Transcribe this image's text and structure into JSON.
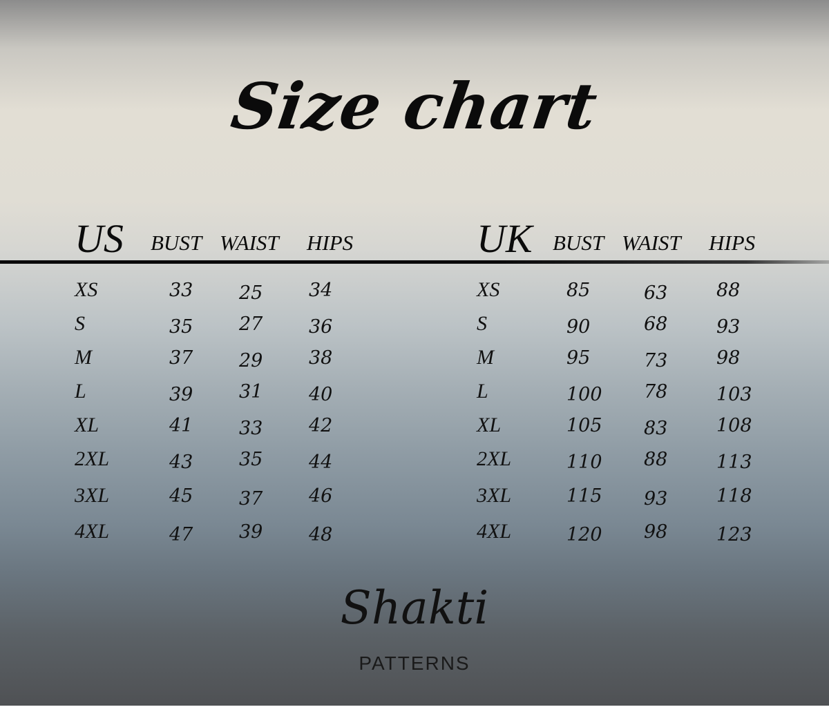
{
  "title": "Size chart",
  "colors": {
    "text": "#0b0b0b",
    "background_top": "#e2ded4",
    "background_bottom": "#4f5154"
  },
  "tables": [
    {
      "system": "US",
      "columns": [
        "BUST",
        "WAIST",
        "HIPS"
      ],
      "rows": [
        {
          "size": "XS",
          "values": [
            "33",
            "25",
            "34"
          ]
        },
        {
          "size": "S",
          "values": [
            "35",
            "27",
            "36"
          ]
        },
        {
          "size": "M",
          "values": [
            "37",
            "29",
            "38"
          ]
        },
        {
          "size": "L",
          "values": [
            "39",
            "31",
            "40"
          ]
        },
        {
          "size": "XL",
          "values": [
            "41",
            "33",
            "42"
          ]
        },
        {
          "size": "2XL",
          "values": [
            "43",
            "35",
            "44"
          ]
        },
        {
          "size": "3XL",
          "values": [
            "45",
            "37",
            "46"
          ]
        },
        {
          "size": "4XL",
          "values": [
            "47",
            "39",
            "48"
          ]
        }
      ]
    },
    {
      "system": "UK",
      "columns": [
        "BUST",
        "WAIST",
        "HIPS"
      ],
      "rows": [
        {
          "size": "XS",
          "values": [
            "85",
            "63",
            "88"
          ]
        },
        {
          "size": "S",
          "values": [
            "90",
            "68",
            "93"
          ]
        },
        {
          "size": "M",
          "values": [
            "95",
            "73",
            "98"
          ]
        },
        {
          "size": "L",
          "values": [
            "100",
            "78",
            "103"
          ]
        },
        {
          "size": "XL",
          "values": [
            "105",
            "83",
            "108"
          ]
        },
        {
          "size": "2XL",
          "values": [
            "110",
            "88",
            "113"
          ]
        },
        {
          "size": "3XL",
          "values": [
            "115",
            "93",
            "118"
          ]
        },
        {
          "size": "4XL",
          "values": [
            "120",
            "98",
            "123"
          ]
        }
      ]
    }
  ],
  "logo": {
    "name": "Shakti",
    "subtitle": "PATTERNS"
  }
}
